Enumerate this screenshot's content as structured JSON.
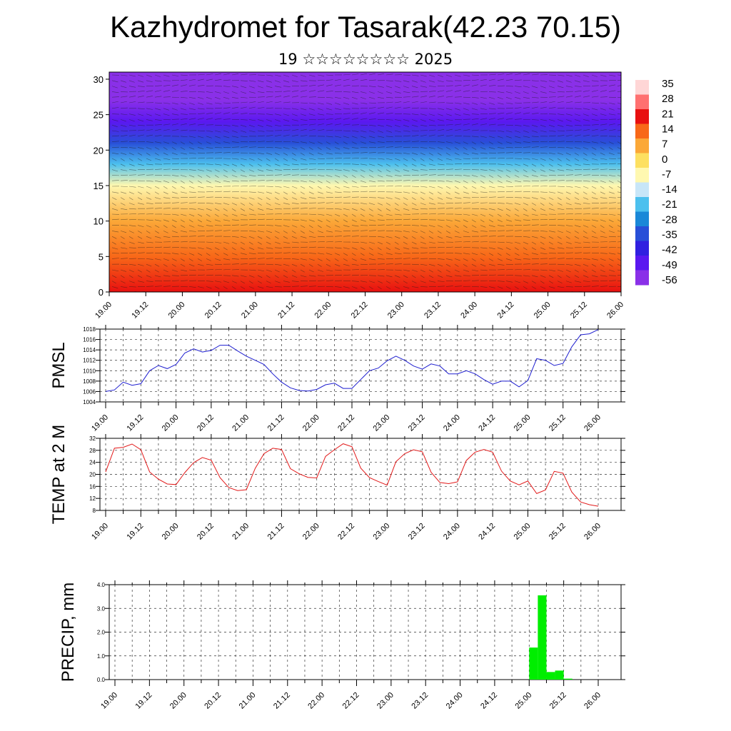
{
  "title": "Kazhydromet for Tasarak(42.23 70.15)",
  "subtitle": "19 ☆☆☆☆☆☆☆☆ 2025",
  "x_labels": [
    "19.00",
    "19.12",
    "20.00",
    "20.12",
    "21.00",
    "21.12",
    "22.00",
    "22.12",
    "23.00",
    "23.12",
    "24.00",
    "24.12",
    "25.00",
    "25.12",
    "26.00"
  ],
  "chart_data": [
    {
      "type": "heatmap",
      "description_axis": "height (km) vs time",
      "x_categories": [
        "19.00",
        "19.12",
        "20.00",
        "20.12",
        "21.00",
        "21.12",
        "22.00",
        "22.12",
        "23.00",
        "23.12",
        "24.00",
        "24.12",
        "25.00",
        "25.12",
        "26.00"
      ],
      "y_ticks": [
        0,
        5,
        10,
        15,
        20,
        25,
        30
      ],
      "ylim": [
        0,
        31
      ],
      "colorbar_labels": [
        "35",
        "28",
        "21",
        "14",
        "7",
        "0",
        "-7",
        "-14",
        "-21",
        "-28",
        "-35",
        "-42",
        "-49",
        "-56"
      ],
      "colorbar_colors": [
        "#ffd6d6",
        "#ff7070",
        "#e81010",
        "#f86818",
        "#fba838",
        "#fde060",
        "#fff8b0",
        "#c8e6f8",
        "#4cc0ee",
        "#1a88d8",
        "#2850d8",
        "#3020e0",
        "#5a18f0",
        "#8a30e8"
      ],
      "layers": [
        {
          "height_km": 0,
          "temp": 22
        },
        {
          "height_km": 5,
          "temp": 18
        },
        {
          "height_km": 10,
          "temp": 11
        },
        {
          "height_km": 15,
          "temp": -4
        },
        {
          "height_km": 18,
          "temp": -20
        },
        {
          "height_km": 21,
          "temp": -35
        },
        {
          "height_km": 24,
          "temp": -52
        },
        {
          "height_km": 27,
          "temp": -58
        },
        {
          "height_km": 31,
          "temp": -58
        }
      ]
    },
    {
      "type": "line",
      "ylabel": "PMSL",
      "ylim": [
        1004,
        1018
      ],
      "y_ticks": [
        "1004",
        "1006",
        "1008",
        "1010",
        "1012",
        "1014",
        "1016",
        "1018"
      ],
      "color": "#1f1fd0",
      "x_range": [
        "19.00",
        "26.00"
      ],
      "values": [
        1006,
        1006.3,
        1007.8,
        1007.2,
        1007.5,
        1010,
        1011,
        1010.4,
        1011.2,
        1013.4,
        1014.2,
        1013.6,
        1013.9,
        1014.9,
        1014.9,
        1013.8,
        1012.8,
        1012,
        1011.2,
        1009.4,
        1007.8,
        1006.7,
        1006.2,
        1006.1,
        1006.4,
        1007.3,
        1007.6,
        1006.6,
        1006.6,
        1008.3,
        1010,
        1010.5,
        1011.9,
        1012.8,
        1012,
        1010.9,
        1010.3,
        1011.3,
        1010.9,
        1009.4,
        1009.4,
        1010,
        1009.4,
        1008.3,
        1007.4,
        1008,
        1008,
        1006.9,
        1008.1,
        1012.3,
        1012,
        1011,
        1011.4,
        1014.6,
        1016.9,
        1017.1,
        1017.9
      ]
    },
    {
      "type": "line",
      "ylabel": "TEMP at 2 M",
      "ylim": [
        8,
        32
      ],
      "y_ticks": [
        "8",
        "12",
        "16",
        "20",
        "24",
        "28",
        "32"
      ],
      "color": "#e21a1a",
      "x_range": [
        "19.00",
        "26.00"
      ],
      "values": [
        20.8,
        28.7,
        29,
        30.1,
        28.2,
        20.8,
        18.4,
        16.8,
        16.6,
        20.6,
        23.9,
        25.6,
        24.7,
        18.9,
        15.6,
        14.6,
        14.9,
        22,
        26.9,
        28.7,
        28.3,
        21.9,
        20.2,
        19,
        18.8,
        26,
        28.2,
        30.2,
        29.2,
        22.1,
        18.9,
        17.6,
        16.4,
        24.2,
        26.9,
        28.2,
        27.5,
        20.7,
        17.3,
        16.9,
        17.5,
        24.6,
        27.4,
        28.3,
        27.4,
        21.1,
        17.8,
        16.5,
        17.8,
        13.6,
        14.8,
        21,
        20.4,
        14.1,
        10.8,
        9.9,
        9.4
      ]
    },
    {
      "type": "bar",
      "ylabel": "PRECIP, mm",
      "ylim": [
        0,
        4
      ],
      "y_ticks": [
        "0.0",
        "1.0",
        "2.0",
        "3.0",
        "4.0"
      ],
      "color": "#00ee00",
      "x_range": [
        "19.00",
        "26.00"
      ],
      "bars": [
        {
          "start": "25.00",
          "end": "25.03",
          "value": 1.35
        },
        {
          "start": "25.03",
          "end": "25.06",
          "value": 3.55
        },
        {
          "start": "25.06",
          "end": "25.09",
          "value": 0.32
        },
        {
          "start": "25.09",
          "end": "25.12",
          "value": 0.38
        },
        {
          "start": "25.12",
          "end": "25.15",
          "value": 0.04
        }
      ]
    }
  ]
}
